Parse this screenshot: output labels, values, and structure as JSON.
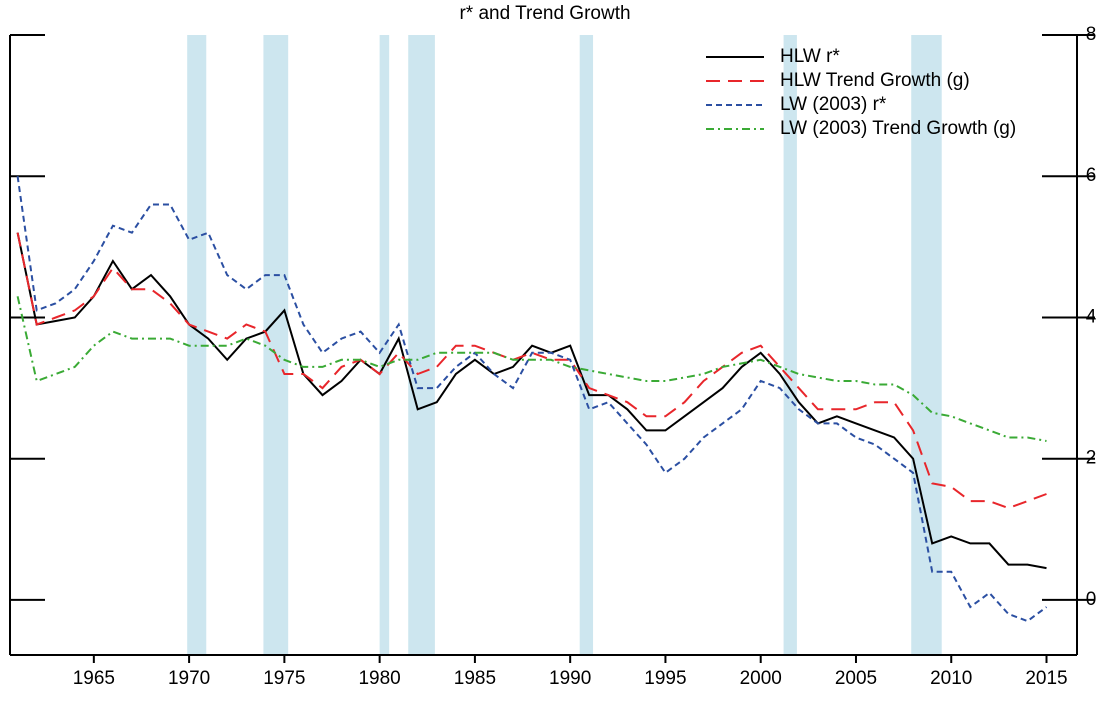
{
  "chart_data": {
    "type": "line",
    "title": "r* and Trend Growth",
    "x": [
      1961,
      1962,
      1963,
      1964,
      1965,
      1966,
      1967,
      1968,
      1969,
      1970,
      1971,
      1972,
      1973,
      1974,
      1975,
      1976,
      1977,
      1978,
      1979,
      1980,
      1981,
      1982,
      1983,
      1984,
      1985,
      1986,
      1987,
      1988,
      1989,
      1990,
      1991,
      1992,
      1993,
      1994,
      1995,
      1996,
      1997,
      1998,
      1999,
      2000,
      2001,
      2002,
      2003,
      2004,
      2005,
      2006,
      2007,
      2008,
      2009,
      2010,
      2011,
      2012,
      2013,
      2014,
      2015
    ],
    "series": [
      {
        "name": "HLW r*",
        "color": "#000000",
        "dash": "none",
        "values": [
          5.2,
          3.9,
          3.95,
          4.0,
          4.3,
          4.8,
          4.4,
          4.6,
          4.3,
          3.9,
          3.7,
          3.4,
          3.7,
          3.8,
          4.1,
          3.2,
          2.9,
          3.1,
          3.4,
          3.2,
          3.7,
          2.7,
          2.8,
          3.2,
          3.4,
          3.2,
          3.3,
          3.6,
          3.5,
          3.6,
          2.9,
          2.9,
          2.7,
          2.4,
          2.4,
          2.6,
          2.8,
          3.0,
          3.3,
          3.5,
          3.2,
          2.8,
          2.5,
          2.6,
          2.5,
          2.4,
          2.3,
          2.0,
          0.8,
          0.9,
          0.8,
          0.8,
          0.5,
          0.5,
          0.45
        ]
      },
      {
        "name": "HLW Trend Growth (g)",
        "color": "#e8262b",
        "dash": "14 8",
        "values": [
          5.2,
          3.9,
          4.0,
          4.1,
          4.3,
          4.7,
          4.4,
          4.4,
          4.2,
          3.9,
          3.8,
          3.7,
          3.9,
          3.8,
          3.2,
          3.2,
          3.0,
          3.3,
          3.4,
          3.2,
          3.5,
          3.2,
          3.3,
          3.6,
          3.6,
          3.5,
          3.4,
          3.5,
          3.4,
          3.4,
          3.0,
          2.9,
          2.8,
          2.6,
          2.6,
          2.8,
          3.1,
          3.3,
          3.5,
          3.6,
          3.3,
          3.0,
          2.7,
          2.7,
          2.7,
          2.8,
          2.8,
          2.4,
          1.65,
          1.6,
          1.4,
          1.4,
          1.3,
          1.4,
          1.5
        ]
      },
      {
        "name": "LW (2003) r*",
        "color": "#2b4fa2",
        "dash": "6 4",
        "values": [
          6.0,
          4.1,
          4.2,
          4.4,
          4.8,
          5.3,
          5.2,
          5.6,
          5.6,
          5.1,
          5.2,
          4.6,
          4.4,
          4.6,
          4.6,
          3.9,
          3.5,
          3.7,
          3.8,
          3.5,
          3.9,
          3.0,
          3.0,
          3.3,
          3.5,
          3.2,
          3.0,
          3.5,
          3.5,
          3.4,
          2.7,
          2.8,
          2.5,
          2.2,
          1.8,
          2.0,
          2.3,
          2.5,
          2.7,
          3.1,
          3.0,
          2.7,
          2.5,
          2.5,
          2.3,
          2.2,
          2.0,
          1.8,
          0.4,
          0.4,
          -0.1,
          0.1,
          -0.2,
          -0.3,
          -0.1
        ]
      },
      {
        "name": "LW (2003) Trend Growth (g)",
        "color": "#3aaa35",
        "dash": "8 4 2 4",
        "values": [
          4.3,
          3.1,
          3.2,
          3.3,
          3.6,
          3.8,
          3.7,
          3.7,
          3.7,
          3.6,
          3.6,
          3.6,
          3.7,
          3.6,
          3.4,
          3.3,
          3.3,
          3.4,
          3.4,
          3.3,
          3.4,
          3.4,
          3.5,
          3.5,
          3.5,
          3.5,
          3.4,
          3.4,
          3.4,
          3.3,
          3.25,
          3.2,
          3.15,
          3.1,
          3.1,
          3.15,
          3.2,
          3.3,
          3.35,
          3.4,
          3.3,
          3.2,
          3.15,
          3.1,
          3.1,
          3.05,
          3.05,
          2.9,
          2.65,
          2.6,
          2.5,
          2.4,
          2.3,
          2.3,
          2.25
        ]
      }
    ],
    "shaded_periods": [
      [
        1969.9,
        1970.9
      ],
      [
        1973.9,
        1975.2
      ],
      [
        1980.0,
        1980.5
      ],
      [
        1981.5,
        1982.9
      ],
      [
        1990.5,
        1991.2
      ],
      [
        2001.2,
        2001.9
      ],
      [
        2007.9,
        2009.5
      ]
    ],
    "shade_color": "#cde6ef",
    "xlim": [
      1960.6,
      2016.6
    ],
    "xticks": [
      1965,
      1970,
      1975,
      1980,
      1985,
      1990,
      1995,
      2000,
      2005,
      2010,
      2015
    ],
    "ylim": [
      -0.78,
      8
    ],
    "yticks": [
      0,
      2,
      4,
      6,
      8
    ],
    "y_axis_side": "right",
    "legend": "top-right"
  }
}
